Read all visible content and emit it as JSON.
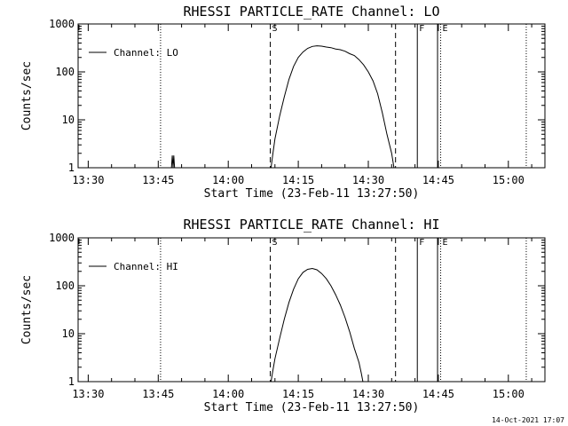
{
  "chart_data": [
    {
      "type": "line",
      "title": "RHESSI PARTICLE_RATE Channel: LO",
      "xlabel": "Start Time (23-Feb-11 13:27:50)",
      "ylabel": "Counts/sec",
      "yscale": "log",
      "ylim": [
        1,
        1000
      ],
      "yticks": [
        {
          "v": 1,
          "label": "1"
        },
        {
          "v": 10,
          "label": "10"
        },
        {
          "v": 100,
          "label": "100"
        },
        {
          "v": 1000,
          "label": "1000"
        }
      ],
      "xlim": [
        "13:27:50",
        "15:07:50"
      ],
      "xticks": [
        {
          "t": "13:30",
          "label": "13:30"
        },
        {
          "t": "13:45",
          "label": "13:45"
        },
        {
          "t": "14:00",
          "label": "14:00"
        },
        {
          "t": "14:15",
          "label": "14:15"
        },
        {
          "t": "14:30",
          "label": "14:30"
        },
        {
          "t": "14:45",
          "label": "14:45"
        },
        {
          "t": "15:00",
          "label": "15:00"
        }
      ],
      "legend": {
        "entry": "Channel: LO",
        "position": "top-left"
      },
      "series": [
        {
          "name": "Channel: LO",
          "segments": [
            [
              [
                "13:47:50",
                1
              ],
              [
                "13:48:00",
                1.8
              ],
              [
                "13:48:10",
                1
              ],
              [
                "13:48:20",
                1.8
              ],
              [
                "13:48:30",
                1
              ]
            ],
            [
              [
                "14:09:10",
                1
              ],
              [
                "14:09:30",
                1.8
              ],
              [
                "14:10:00",
                4
              ],
              [
                "14:11:00",
                12
              ],
              [
                "14:12:00",
                30
              ],
              [
                "14:13:00",
                70
              ],
              [
                "14:14:00",
                130
              ],
              [
                "14:15:00",
                200
              ],
              [
                "14:16:00",
                260
              ],
              [
                "14:17:00",
                310
              ],
              [
                "14:18:00",
                340
              ],
              [
                "14:19:00",
                350
              ],
              [
                "14:20:00",
                345
              ],
              [
                "14:21:00",
                330
              ],
              [
                "14:22:00",
                320
              ],
              [
                "14:23:00",
                300
              ],
              [
                "14:24:00",
                290
              ],
              [
                "14:25:00",
                270
              ],
              [
                "14:26:00",
                240
              ],
              [
                "14:27:00",
                220
              ],
              [
                "14:28:00",
                180
              ],
              [
                "14:29:00",
                140
              ],
              [
                "14:30:00",
                100
              ],
              [
                "14:31:00",
                65
              ],
              [
                "14:32:00",
                35
              ],
              [
                "14:33:00",
                14
              ],
              [
                "14:34:00",
                5
              ],
              [
                "14:35:00",
                2
              ],
              [
                "14:35:30",
                1
              ]
            ]
          ]
        }
      ],
      "markers": [
        {
          "t": "13:45:30",
          "style": "dotted",
          "label": ""
        },
        {
          "t": "14:09:00",
          "style": "dashed",
          "label": "S"
        },
        {
          "t": "14:35:50",
          "style": "dashed",
          "label": ""
        },
        {
          "t": "14:40:30",
          "style": "solid",
          "label": "F"
        },
        {
          "t": "14:44:50",
          "style": "solid",
          "label": ""
        },
        {
          "t": "14:45:30",
          "style": "dotted",
          "label": "E"
        },
        {
          "t": "15:03:50",
          "style": "dotted",
          "label": ""
        }
      ]
    },
    {
      "type": "line",
      "title": "RHESSI PARTICLE_RATE Channel: HI",
      "xlabel": "Start Time (23-Feb-11 13:27:50)",
      "ylabel": "Counts/sec",
      "yscale": "log",
      "ylim": [
        1,
        1000
      ],
      "yticks": [
        {
          "v": 1,
          "label": "1"
        },
        {
          "v": 10,
          "label": "10"
        },
        {
          "v": 100,
          "label": "100"
        },
        {
          "v": 1000,
          "label": "1000"
        }
      ],
      "xlim": [
        "13:27:50",
        "15:07:50"
      ],
      "xticks": [
        {
          "t": "13:30",
          "label": "13:30"
        },
        {
          "t": "13:45",
          "label": "13:45"
        },
        {
          "t": "14:00",
          "label": "14:00"
        },
        {
          "t": "14:15",
          "label": "14:15"
        },
        {
          "t": "14:30",
          "label": "14:30"
        },
        {
          "t": "14:45",
          "label": "14:45"
        },
        {
          "t": "15:00",
          "label": "15:00"
        }
      ],
      "legend": {
        "entry": "Channel: HI",
        "position": "top-left"
      },
      "series": [
        {
          "name": "Channel: HI",
          "segments": [
            [
              [
                "14:09:10",
                1
              ],
              [
                "14:09:30",
                1.6
              ],
              [
                "14:10:00",
                3
              ],
              [
                "14:11:00",
                8
              ],
              [
                "14:12:00",
                20
              ],
              [
                "14:13:00",
                45
              ],
              [
                "14:14:00",
                85
              ],
              [
                "14:15:00",
                140
              ],
              [
                "14:16:00",
                190
              ],
              [
                "14:17:00",
                220
              ],
              [
                "14:18:00",
                230
              ],
              [
                "14:19:00",
                215
              ],
              [
                "14:20:00",
                180
              ],
              [
                "14:21:00",
                140
              ],
              [
                "14:22:00",
                100
              ],
              [
                "14:23:00",
                65
              ],
              [
                "14:24:00",
                40
              ],
              [
                "14:25:00",
                22
              ],
              [
                "14:26:00",
                11
              ],
              [
                "14:27:00",
                5
              ],
              [
                "14:28:00",
                2.5
              ],
              [
                "14:28:30",
                1.5
              ],
              [
                "14:28:50",
                1
              ]
            ]
          ]
        }
      ],
      "markers": [
        {
          "t": "13:45:30",
          "style": "dotted",
          "label": ""
        },
        {
          "t": "14:09:00",
          "style": "dashed",
          "label": "S"
        },
        {
          "t": "14:35:50",
          "style": "dashed",
          "label": ""
        },
        {
          "t": "14:40:30",
          "style": "solid",
          "label": "F"
        },
        {
          "t": "14:44:50",
          "style": "solid",
          "label": ""
        },
        {
          "t": "14:45:30",
          "style": "dotted",
          "label": "E"
        },
        {
          "t": "15:03:50",
          "style": "dotted",
          "label": ""
        }
      ]
    }
  ],
  "timestamp": "14-Oct-2021 17:07"
}
